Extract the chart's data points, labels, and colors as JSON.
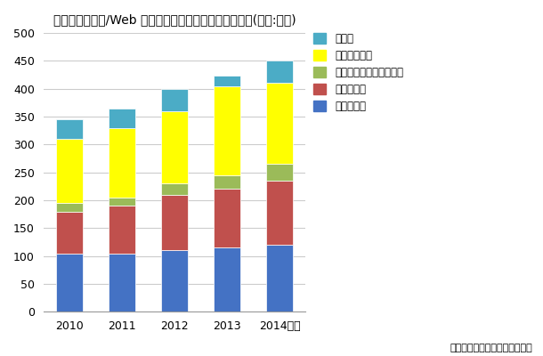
{
  "title": "国内ビデオ会議/Web 会議／音声会議関連市場規模予測(単位:億円)",
  "categories": [
    "2010",
    "2011",
    "2012",
    "2013",
    "2014見込"
  ],
  "series": [
    {
      "label": "ビデオ会議",
      "values": [
        105,
        105,
        110,
        115,
        120
      ],
      "color": "#4472C4"
    },
    {
      "label": "Ｗｅｂ会議",
      "values": [
        75,
        85,
        100,
        105,
        115
      ],
      "color": "#C0504D"
    },
    {
      "label": "ビデオ会議接続サービス",
      "values": [
        15,
        15,
        20,
        25,
        30
      ],
      "color": "#9BBB59"
    },
    {
      "label": "音声会議関連",
      "values": [
        115,
        125,
        130,
        160,
        145
      ],
      "color": "#FFFF00"
    },
    {
      "label": "ＭＣＵ",
      "values": [
        35,
        35,
        40,
        18,
        40
      ],
      "color": "#4BACC6"
    }
  ],
  "ylim": [
    0,
    500
  ],
  "yticks": [
    0,
    50,
    100,
    150,
    200,
    250,
    300,
    350,
    400,
    450,
    500
  ],
  "ylabel": "",
  "xlabel": "",
  "footnote": "（シード・プランニング作成）",
  "background_color": "#FFFFFF",
  "plot_bg_color": "#FFFFFF",
  "bar_width": 0.5,
  "grid_color": "#CCCCCC",
  "title_fontsize": 10,
  "legend_fontsize": 8.5,
  "tick_fontsize": 9,
  "legend_labels": [
    "ＭＣＵ",
    "音声会議関連",
    "ビデオ会議接続サービス",
    "Ｗｅｂ会議",
    "ビデオ会議"
  ],
  "legend_colors": [
    "#4BACC6",
    "#FFFF00",
    "#9BBB59",
    "#C0504D",
    "#4472C4"
  ]
}
